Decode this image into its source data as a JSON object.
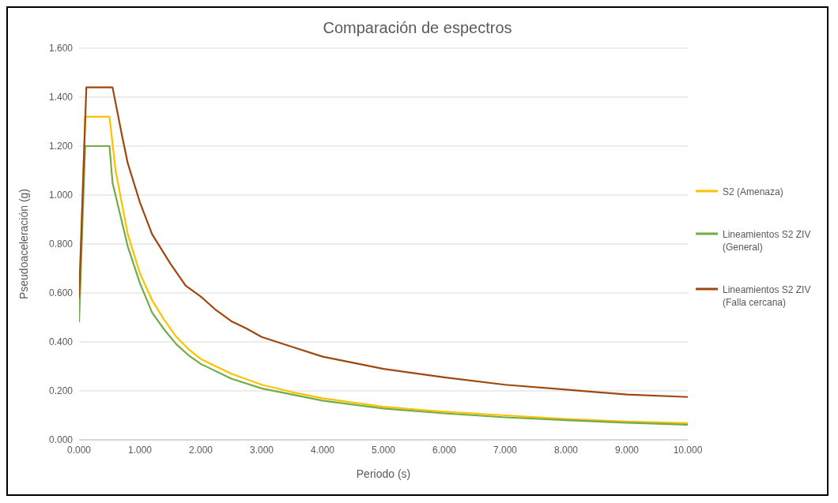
{
  "chart_data": {
    "type": "line",
    "title": "Comparación de espectros",
    "xlabel": "Periodo (s)",
    "ylabel": "Pseudoaceleración (g)",
    "xlim": [
      0,
      10
    ],
    "ylim": [
      0,
      1.6
    ],
    "xticks": [
      {
        "value": 0,
        "label": "0.000"
      },
      {
        "value": 1,
        "label": "1.000"
      },
      {
        "value": 2,
        "label": "2.000"
      },
      {
        "value": 3,
        "label": "3.000"
      },
      {
        "value": 4,
        "label": "4.000"
      },
      {
        "value": 5,
        "label": "5.000"
      },
      {
        "value": 6,
        "label": "6.000"
      },
      {
        "value": 7,
        "label": "7.000"
      },
      {
        "value": 8,
        "label": "8.000"
      },
      {
        "value": 9,
        "label": "9.000"
      },
      {
        "value": 10,
        "label": "10.000"
      }
    ],
    "yticks": [
      {
        "value": 0,
        "label": "0.000"
      },
      {
        "value": 0.2,
        "label": "0.200"
      },
      {
        "value": 0.4,
        "label": "0.400"
      },
      {
        "value": 0.6,
        "label": "0.600"
      },
      {
        "value": 0.8,
        "label": "0.800"
      },
      {
        "value": 1,
        "label": "1.000"
      },
      {
        "value": 1.2,
        "label": "1.200"
      },
      {
        "value": 1.4,
        "label": "1.400"
      },
      {
        "value": 1.6,
        "label": "1.600"
      }
    ],
    "grid": "y",
    "legend": "right",
    "marker": "none",
    "line_style": "solid",
    "series": [
      {
        "name": "S2 (Amenaza)",
        "color": "#ffc000",
        "x": [
          0,
          0.1,
          0.5,
          0.6,
          0.8,
          1,
          1.2,
          1.4,
          1.6,
          1.8,
          2,
          2.5,
          3,
          3.5,
          4,
          5,
          6,
          7,
          8,
          9,
          10
        ],
        "values": [
          0.53,
          1.32,
          1.32,
          1.1,
          0.84,
          0.68,
          0.57,
          0.49,
          0.42,
          0.37,
          0.33,
          0.27,
          0.225,
          0.195,
          0.17,
          0.135,
          0.115,
          0.1,
          0.085,
          0.075,
          0.068
        ]
      },
      {
        "name": "Lineamientos S2 ZIV (General)",
        "color": "#70ad47",
        "x": [
          0,
          0.1,
          0.5,
          0.55,
          0.8,
          1,
          1.2,
          1.4,
          1.6,
          1.8,
          2,
          2.5,
          3,
          3.5,
          4,
          5,
          6,
          7,
          8,
          9,
          10
        ],
        "values": [
          0.48,
          1.2,
          1.2,
          1.05,
          0.79,
          0.64,
          0.52,
          0.45,
          0.39,
          0.345,
          0.31,
          0.25,
          0.21,
          0.185,
          0.16,
          0.128,
          0.108,
          0.092,
          0.08,
          0.07,
          0.062
        ]
      },
      {
        "name": "Lineamientos S2 ZIV (Falla cercana)",
        "color": "#9e480e",
        "x": [
          0,
          0.1,
          0.12,
          0.55,
          0.7,
          0.8,
          1,
          1.2,
          1.5,
          1.75,
          2,
          2.25,
          2.5,
          2.75,
          3,
          3.5,
          4,
          5,
          6,
          7,
          8,
          9,
          10
        ],
        "values": [
          0.58,
          1.3,
          1.44,
          1.44,
          1.25,
          1.13,
          0.97,
          0.84,
          0.72,
          0.63,
          0.585,
          0.53,
          0.485,
          0.455,
          0.42,
          0.38,
          0.34,
          0.29,
          0.255,
          0.225,
          0.205,
          0.185,
          0.175
        ]
      }
    ]
  }
}
